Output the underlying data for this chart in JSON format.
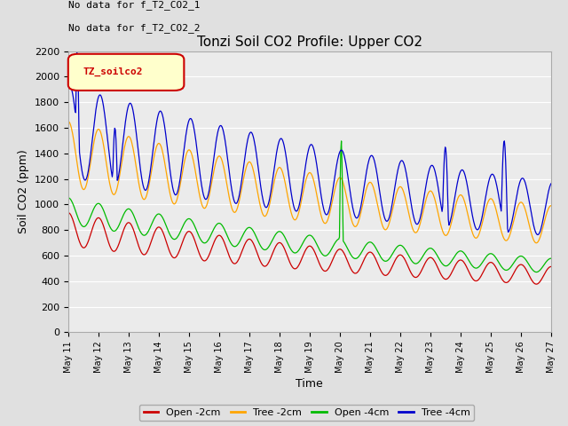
{
  "title": "Tonzi Soil CO2 Profile: Upper CO2",
  "ylabel": "Soil CO2 (ppm)",
  "xlabel": "Time",
  "no_data_text_1": "No data for f_T2_CO2_1",
  "no_data_text_2": "No data for f_T2_CO2_2",
  "legend_label": "TZ_soilco2",
  "ylim": [
    0,
    2200
  ],
  "legend_entries": [
    "Open -2cm",
    "Tree -2cm",
    "Open -4cm",
    "Tree -4cm"
  ],
  "line_colors": [
    "#cc0000",
    "#ffa500",
    "#00bb00",
    "#0000cc"
  ],
  "background_color": "#e0e0e0",
  "plot_bg_color": "#ebebeb",
  "yticks": [
    0,
    200,
    400,
    600,
    800,
    1000,
    1200,
    1400,
    1600,
    1800,
    2000,
    2200
  ],
  "tick_labels": [
    "May 11",
    "May 12",
    "May 13",
    "May 14",
    "May 15",
    "May 16",
    "May 17",
    "May 18",
    "May 19",
    "May 20",
    "May 21",
    "May 22",
    "May 23",
    "May 24",
    "May 25",
    "May 26",
    "May 27"
  ]
}
